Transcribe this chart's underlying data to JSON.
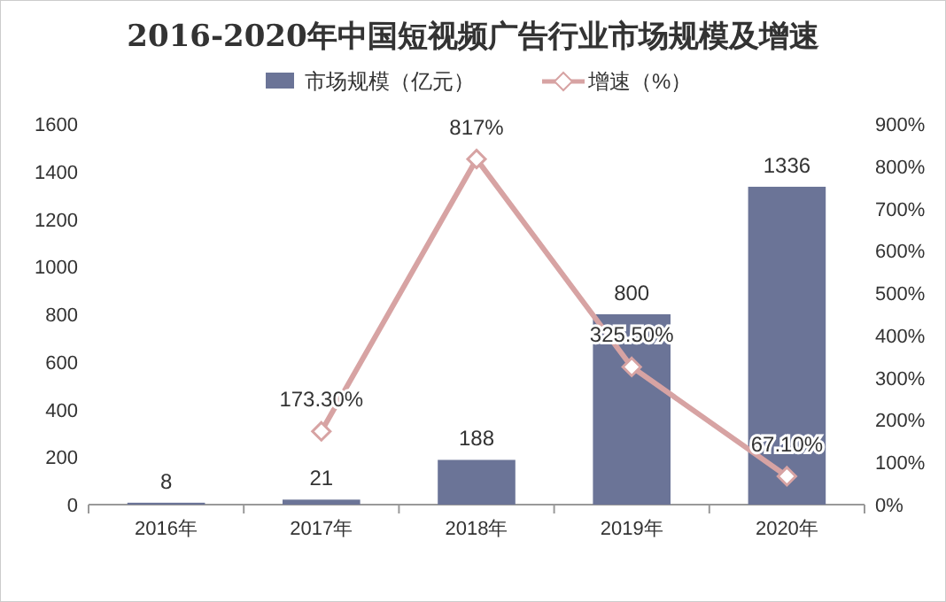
{
  "chart_data": {
    "type": "bar",
    "title": "2016-2020年中国短视频广告行业市场规模及增速",
    "categories": [
      "2016年",
      "2017年",
      "2018年",
      "2019年",
      "2020年"
    ],
    "series": [
      {
        "name": "市场规模（亿元）",
        "color": "#6b7497",
        "values": [
          8,
          21,
          188,
          800,
          1336
        ],
        "data_labels": true
      },
      {
        "name": "增速（%）",
        "type": "line",
        "axis": "y2",
        "color": "#d7a3a3",
        "marker": "diamond",
        "values": [
          null,
          173.3,
          817,
          325.5,
          67.1
        ],
        "value_labels": [
          null,
          "173.30%",
          "817%",
          "325.50%",
          "67.10%"
        ]
      }
    ],
    "ylim": [
      0,
      1600
    ],
    "yticks": [
      0,
      200,
      400,
      600,
      800,
      1000,
      1200,
      1400,
      1600
    ],
    "y2lim": [
      0,
      900
    ],
    "y2ticks": [
      {
        "value": 0,
        "label": "0%"
      },
      {
        "value": 100,
        "label": "100%"
      },
      {
        "value": 200,
        "label": "200%"
      },
      {
        "value": 300,
        "label": "300%"
      },
      {
        "value": 400,
        "label": "400%"
      },
      {
        "value": 500,
        "label": "500%"
      },
      {
        "value": 600,
        "label": "600%"
      },
      {
        "value": 700,
        "label": "700%"
      },
      {
        "value": 800,
        "label": "800%"
      },
      {
        "value": 900,
        "label": "900%"
      }
    ],
    "grid": false,
    "legend": "top"
  }
}
